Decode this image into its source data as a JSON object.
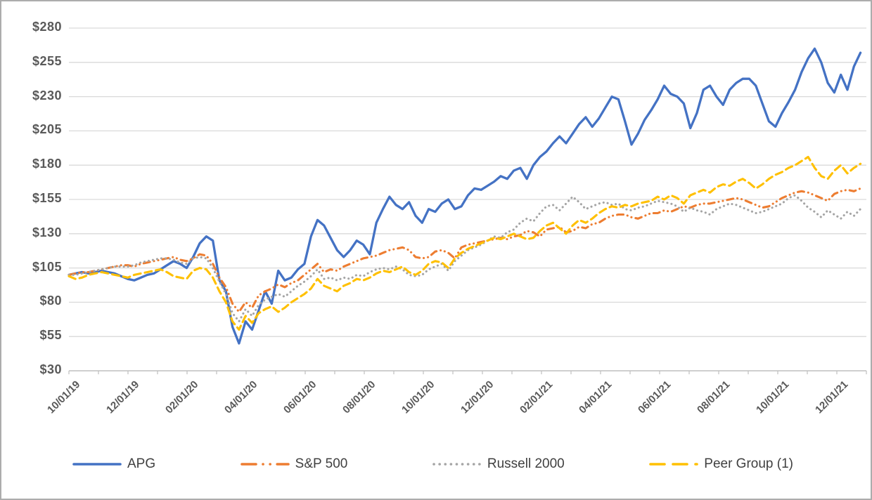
{
  "chart_data": {
    "type": "line",
    "title": "",
    "grid": "horizontal",
    "legend_position": "bottom",
    "y_axis": {
      "min": 30,
      "max": 280,
      "step": 25,
      "tick_prefix": "$",
      "tick_labels": [
        "$280",
        "$255",
        "$230",
        "$205",
        "$180",
        "$155",
        "$130",
        "$105",
        "$80",
        "$55",
        "$30"
      ]
    },
    "x_axis": {
      "tick_labels": [
        "10/01/19",
        "12/01/19",
        "02/01/20",
        "04/01/20",
        "06/01/20",
        "08/01/20",
        "10/01/20",
        "12/01/20",
        "02/01/21",
        "04/01/21",
        "06/01/21",
        "08/01/21",
        "10/01/21",
        "12/01/21"
      ],
      "months_total": 27,
      "minor_tick_every_months": 1,
      "label_every_months": 2,
      "data_end_month": 26.8
    },
    "series": [
      {
        "name": "APG",
        "color": "#4472C4",
        "style": "solid",
        "values": [
          100,
          101,
          102,
          101,
          102,
          103,
          102,
          101,
          99,
          97,
          96,
          98,
          100,
          101,
          104,
          107,
          110,
          108,
          105,
          113,
          123,
          128,
          125,
          96,
          88,
          62,
          50,
          66,
          60,
          74,
          88,
          79,
          103,
          96,
          98,
          104,
          108,
          128,
          140,
          136,
          127,
          118,
          113,
          118,
          125,
          122,
          115,
          138,
          148,
          157,
          151,
          148,
          153,
          143,
          138,
          148,
          146,
          152,
          155,
          148,
          150,
          158,
          163,
          162,
          165,
          168,
          172,
          170,
          176,
          178,
          170,
          180,
          186,
          190,
          196,
          201,
          196,
          203,
          210,
          215,
          208,
          214,
          222,
          230,
          228,
          212,
          195,
          203,
          213,
          220,
          228,
          238,
          232,
          230,
          225,
          207,
          218,
          235,
          238,
          230,
          224,
          235,
          240,
          243,
          243,
          238,
          225,
          212,
          208,
          218,
          226,
          235,
          248,
          258,
          265,
          255,
          240,
          233,
          246,
          235,
          252,
          262
        ]
      },
      {
        "name": "S&P 500",
        "color": "#ED7D31",
        "style": "dash-dot-dot",
        "values": [
          100,
          101,
          102,
          102,
          103,
          104,
          105,
          106,
          107,
          107,
          106,
          108,
          109,
          110,
          111,
          112,
          113,
          111,
          110,
          112,
          115,
          114,
          108,
          98,
          91,
          79,
          73,
          80,
          76,
          85,
          88,
          90,
          93,
          91,
          94,
          96,
          100,
          104,
          108,
          102,
          104,
          103,
          106,
          108,
          110,
          112,
          113,
          114,
          116,
          118,
          119,
          120,
          118,
          113,
          112,
          113,
          117,
          118,
          116,
          112,
          120,
          122,
          123,
          124,
          125,
          126,
          127,
          126,
          128,
          129,
          132,
          131,
          128,
          133,
          134,
          135,
          131,
          132,
          135,
          134,
          137,
          138,
          141,
          143,
          144,
          144,
          142,
          141,
          143,
          145,
          145,
          147,
          146,
          148,
          150,
          149,
          151,
          152,
          152,
          153,
          154,
          155,
          156,
          155,
          153,
          151,
          149,
          150,
          153,
          156,
          158,
          160,
          161,
          160,
          158,
          156,
          154,
          159,
          161,
          162,
          161,
          163
        ]
      },
      {
        "name": "Russell 2000",
        "color": "#A5A5A5",
        "style": "dotted",
        "values": [
          100,
          100,
          101,
          102,
          103,
          104,
          105,
          106,
          106,
          106,
          107,
          109,
          110,
          111,
          112,
          112,
          111,
          109,
          108,
          112,
          113,
          112,
          105,
          95,
          86,
          72,
          66,
          75,
          70,
          78,
          82,
          84,
          86,
          84,
          88,
          92,
          95,
          99,
          104,
          97,
          98,
          96,
          98,
          97,
          100,
          99,
          102,
          104,
          105,
          104,
          106,
          104,
          100,
          99,
          100,
          104,
          106,
          108,
          103,
          110,
          114,
          118,
          120,
          122,
          125,
          128,
          127,
          131,
          133,
          138,
          141,
          139,
          145,
          150,
          151,
          147,
          152,
          157,
          153,
          148,
          150,
          152,
          153,
          151,
          152,
          148,
          147,
          149,
          150,
          152,
          154,
          153,
          152,
          150,
          146,
          149,
          147,
          146,
          144,
          148,
          150,
          152,
          151,
          149,
          147,
          145,
          146,
          148,
          150,
          152,
          156,
          158,
          154,
          149,
          146,
          142,
          147,
          144,
          141,
          146,
          143,
          148
        ]
      },
      {
        "name": "Peer Group (1)",
        "color": "#FFC000",
        "style": "dashed",
        "values": [
          99,
          97,
          98,
          100,
          101,
          102,
          101,
          100,
          99,
          98,
          100,
          101,
          102,
          103,
          104,
          102,
          99,
          98,
          97,
          103,
          105,
          104,
          98,
          88,
          80,
          66,
          60,
          70,
          65,
          72,
          75,
          77,
          73,
          76,
          80,
          83,
          86,
          90,
          97,
          92,
          90,
          88,
          92,
          94,
          97,
          96,
          98,
          101,
          103,
          102,
          104,
          106,
          102,
          100,
          103,
          108,
          110,
          109,
          105,
          112,
          116,
          119,
          121,
          123,
          125,
          127,
          126,
          128,
          130,
          128,
          126,
          127,
          132,
          136,
          138,
          134,
          130,
          136,
          140,
          138,
          141,
          145,
          148,
          150,
          149,
          151,
          150,
          152,
          153,
          154,
          157,
          155,
          158,
          156,
          152,
          158,
          160,
          162,
          160,
          164,
          166,
          165,
          168,
          170,
          167,
          163,
          166,
          170,
          173,
          175,
          178,
          180,
          183,
          186,
          178,
          172,
          170,
          176,
          180,
          174,
          178,
          181
        ]
      }
    ]
  },
  "colors": {
    "background": "#FFFFFF",
    "gridline": "#D9D9D9",
    "axis_line": "#BFBFBF",
    "tick_label": "#595959",
    "legend_text": "#404040",
    "frame_border": "#ACACAC"
  }
}
